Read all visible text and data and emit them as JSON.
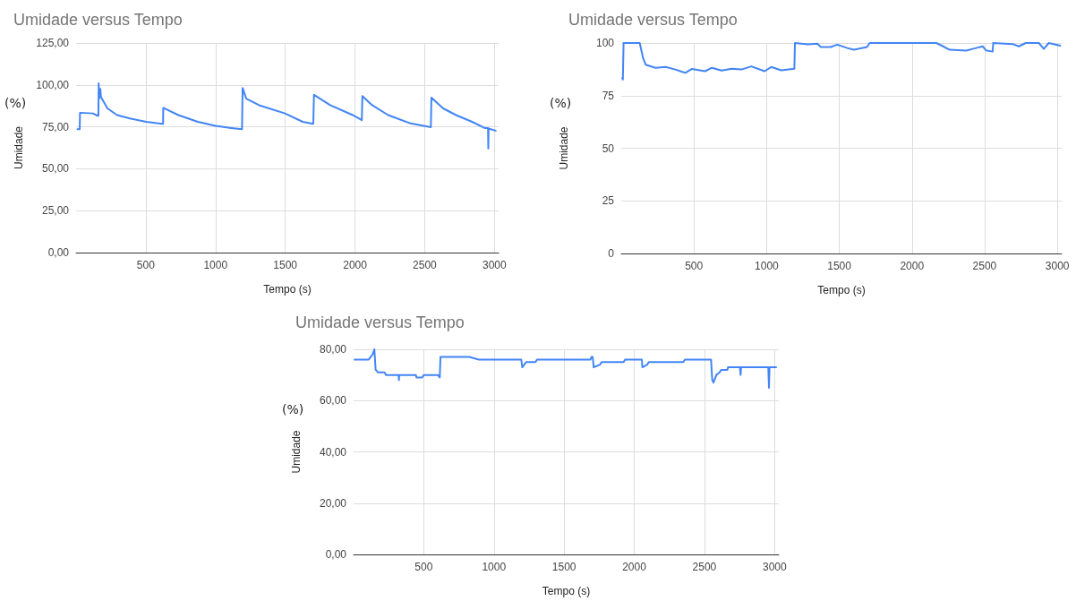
{
  "chart_data": [
    {
      "type": "line",
      "title": "Umidade versus Tempo",
      "xlabel": "Tempo (s)",
      "ylabel": "Umidade",
      "annotations": [
        "(%)"
      ],
      "grid": true,
      "marker": "none",
      "line_style": "solid",
      "xlim": [
        0,
        3030
      ],
      "xticks": [
        500,
        1000,
        1500,
        2000,
        2500,
        3000
      ],
      "ylim": [
        0,
        125
      ],
      "yticks": [
        {
          "value": 0,
          "label": "0,00"
        },
        {
          "value": 25,
          "label": "25,00"
        },
        {
          "value": 50,
          "label": "50,00"
        },
        {
          "value": 75,
          "label": "75,00"
        },
        {
          "value": 100,
          "label": "100,00"
        },
        {
          "value": 125,
          "label": "125,00"
        }
      ],
      "series": [
        {
          "color": "#4285f4",
          "x": [
            10,
            26,
            28,
            120,
            155,
            160,
            162,
            166,
            174,
            178,
            225,
            294,
            386,
            502,
            618,
            624,
            625,
            734,
            873,
            1000,
            1081,
            1190,
            1192,
            1194,
            1220,
            1312,
            1498,
            1625,
            1701,
            1703,
            1706,
            1822,
            1984,
            2049,
            2051,
            2053,
            2123,
            2238,
            2400,
            2544,
            2546,
            2548,
            2632,
            2725,
            2840,
            2933,
            2954,
            2956,
            2958,
            3009
          ],
          "values": [
            73.6,
            73.6,
            83.4,
            83,
            81.6,
            81.6,
            101,
            92,
            97.6,
            92.8,
            86,
            82,
            80,
            78,
            76.8,
            76.8,
            86.3,
            82,
            78,
            75.6,
            74.6,
            73.6,
            73.6,
            98.2,
            91.8,
            87.9,
            83,
            78,
            76.8,
            76.8,
            94.1,
            87.9,
            82,
            79,
            79,
            93.4,
            87.9,
            82,
            77,
            74.8,
            74.8,
            92.4,
            86,
            82,
            78,
            74.2,
            74.2,
            62.1,
            74,
            72.7
          ]
        }
      ]
    },
    {
      "type": "line",
      "title": "Umidade versus Tempo",
      "xlabel": "Tempo (s)",
      "ylabel": "Umidade",
      "annotations": [
        "(%)"
      ],
      "grid": true,
      "marker": "none",
      "line_style": "solid",
      "xlim": [
        0,
        3030
      ],
      "xticks": [
        500,
        1000,
        1500,
        2000,
        2500,
        3000
      ],
      "ylim": [
        0,
        100
      ],
      "yticks": [
        0,
        25,
        50,
        75,
        100
      ],
      "series": [
        {
          "color": "#4285f4",
          "x": [
            7,
            11,
            16,
            127,
            150,
            168,
            236,
            305,
            373,
            441,
            486,
            577,
            623,
            691,
            759,
            827,
            895,
            986,
            1032,
            1100,
            1191,
            1195,
            1282,
            1350,
            1373,
            1441,
            1486,
            1555,
            1600,
            1691,
            1709,
            2168,
            2214,
            2259,
            2373,
            2441,
            2486,
            2509,
            2555,
            2559,
            2691,
            2736,
            2782,
            2873,
            2907,
            2941,
            3020
          ],
          "values": [
            83.4,
            82.6,
            100,
            100,
            92.9,
            89.7,
            88.2,
            88.6,
            87.4,
            85.8,
            87.7,
            86.6,
            88.2,
            86.9,
            87.8,
            87.4,
            88.9,
            86.6,
            88.6,
            87,
            87.8,
            100,
            99.4,
            99.7,
            98.1,
            98.1,
            99.2,
            97.6,
            96.8,
            98.1,
            100,
            100,
            98.4,
            96.8,
            96.4,
            97.6,
            98.4,
            96.5,
            95.9,
            100,
            99.5,
            98.4,
            100,
            100,
            97.2,
            100,
            98.7
          ]
        }
      ]
    },
    {
      "type": "line",
      "title": "Umidade versus Tempo",
      "xlabel": "Tempo (s)",
      "ylabel": "Umidade",
      "annotations": [
        "(%)"
      ],
      "grid": true,
      "marker": "none",
      "line_style": "solid",
      "xlim": [
        0,
        3030
      ],
      "xticks": [
        500,
        1000,
        1500,
        2000,
        2500,
        3000
      ],
      "ylim": [
        0,
        80
      ],
      "yticks": [
        {
          "value": 0,
          "label": "0,00"
        },
        {
          "value": 20,
          "label": "20,00"
        },
        {
          "value": 40,
          "label": "40,00"
        },
        {
          "value": 60,
          "label": "60,00"
        },
        {
          "value": 80,
          "label": "80,00"
        }
      ],
      "series": [
        {
          "color": "#4285f4",
          "x": [
            7,
            108,
            135,
            148,
            157,
            175,
            220,
            231,
            321,
            323,
            325,
            444,
            448,
            489,
            500,
            601,
            614,
            619,
            825,
            892,
            982,
            1195,
            1202,
            1229,
            1296,
            1307,
            1688,
            1695,
            1704,
            1711,
            1756,
            1767,
            1924,
            1935,
            2054,
            2058,
            2092,
            2103,
            2350,
            2361,
            2547,
            2556,
            2565,
            2585,
            2608,
            2619,
            2664,
            2668,
            2753,
            2758,
            2761,
            2955,
            2960,
            2964,
            3011
          ],
          "values": [
            76,
            76,
            78,
            80,
            72,
            71,
            71,
            70,
            70,
            68,
            70,
            70,
            69,
            69,
            70,
            70,
            69,
            77,
            77,
            76,
            76,
            76,
            73,
            75,
            75,
            76,
            76,
            77,
            77,
            73,
            74,
            75,
            75,
            76,
            76,
            73,
            74,
            75,
            75,
            76,
            76,
            68,
            67,
            70,
            71,
            72,
            72,
            73,
            73,
            70,
            73,
            73,
            65,
            73,
            73
          ]
        }
      ]
    }
  ]
}
